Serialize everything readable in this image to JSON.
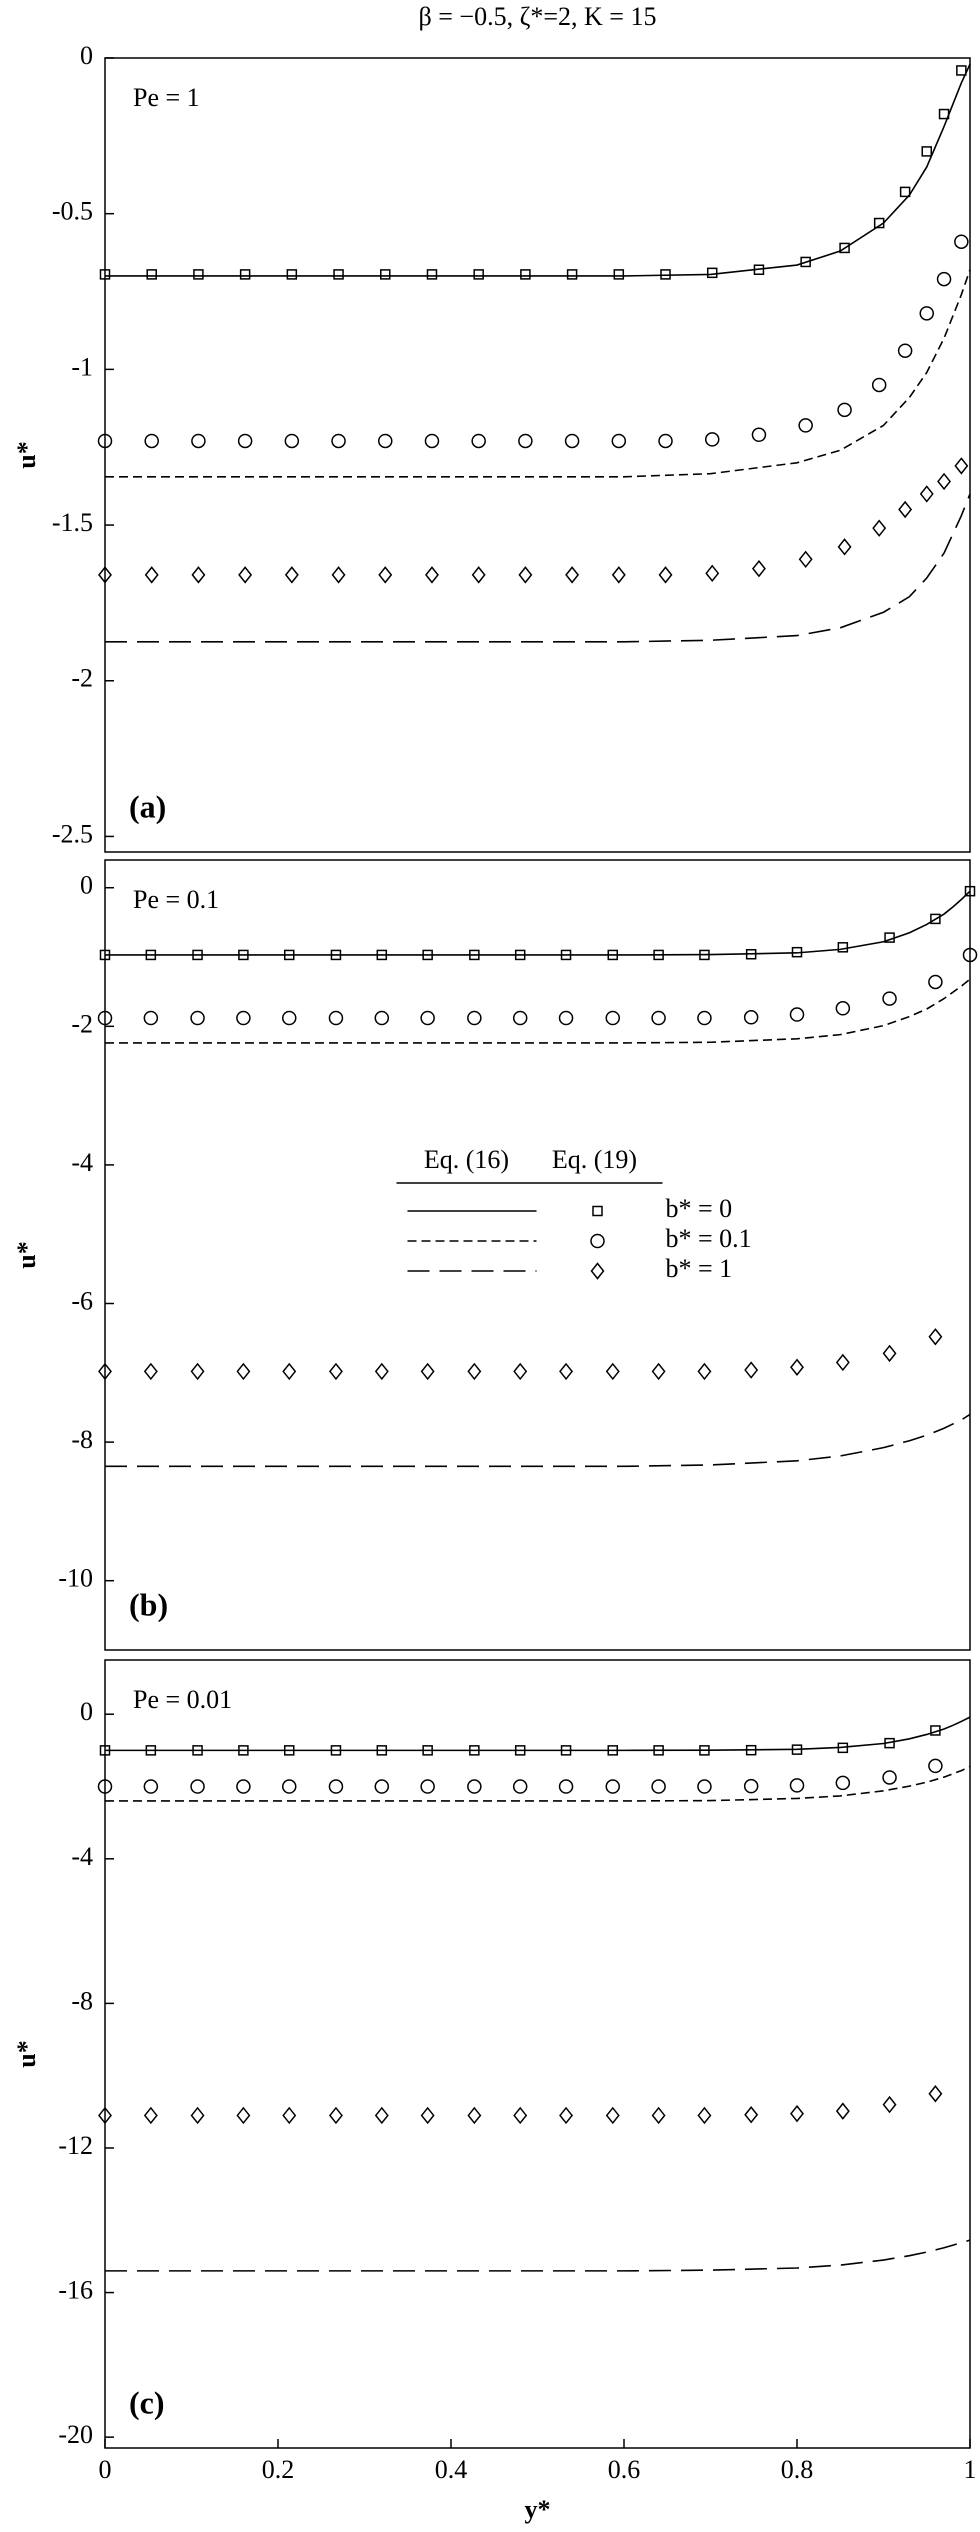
{
  "chart_data": [
    {
      "type": "line",
      "title": "β = −0.5, ζ*=2, K = 15",
      "annotation": "Pe = 1",
      "panel_label": "(a)",
      "ylabel": "u*",
      "xlim": [
        0,
        1
      ],
      "ylim": [
        -2.55,
        0
      ],
      "yticks": [
        0,
        -0.5,
        -1,
        -1.5,
        -2,
        -2.5
      ],
      "x": [
        0,
        0.1,
        0.2,
        0.3,
        0.4,
        0.5,
        0.6,
        0.7,
        0.8,
        0.85,
        0.9,
        0.93,
        0.95,
        0.97,
        0.98,
        0.99,
        1
      ],
      "marker_x": [
        0,
        0.054,
        0.108,
        0.162,
        0.216,
        0.27,
        0.324,
        0.378,
        0.432,
        0.486,
        0.54,
        0.594,
        0.648,
        0.702,
        0.756,
        0.81,
        0.855,
        0.895,
        0.925,
        0.95,
        0.97,
        0.99
      ],
      "series": [
        {
          "color": "#000",
          "dash": "solid",
          "marker": "square",
          "values": [
            -0.7,
            -0.7,
            -0.7,
            -0.7,
            -0.7,
            -0.7,
            -0.7,
            -0.695,
            -0.665,
            -0.62,
            -0.53,
            -0.44,
            -0.35,
            -0.22,
            -0.15,
            -0.08,
            -0.02
          ],
          "marker_values": [
            -0.695,
            -0.695,
            -0.695,
            -0.695,
            -0.695,
            -0.695,
            -0.695,
            -0.695,
            -0.695,
            -0.695,
            -0.695,
            -0.695,
            -0.695,
            -0.69,
            -0.68,
            -0.655,
            -0.61,
            -0.53,
            -0.43,
            -0.3,
            -0.18,
            -0.04
          ]
        },
        {
          "color": "#000",
          "dash": "short",
          "marker": "circle",
          "values": [
            -1.345,
            -1.345,
            -1.345,
            -1.345,
            -1.345,
            -1.345,
            -1.345,
            -1.335,
            -1.3,
            -1.26,
            -1.18,
            -1.09,
            -1.01,
            -0.9,
            -0.83,
            -0.76,
            -0.68
          ],
          "marker_values": [
            -1.23,
            -1.23,
            -1.23,
            -1.23,
            -1.23,
            -1.23,
            -1.23,
            -1.23,
            -1.23,
            -1.23,
            -1.23,
            -1.23,
            -1.23,
            -1.225,
            -1.21,
            -1.18,
            -1.13,
            -1.05,
            -0.94,
            -0.82,
            -0.71,
            -0.59
          ]
        },
        {
          "color": "#000",
          "dash": "long",
          "marker": "diamond",
          "values": [
            -1.875,
            -1.875,
            -1.875,
            -1.875,
            -1.875,
            -1.875,
            -1.875,
            -1.87,
            -1.855,
            -1.83,
            -1.78,
            -1.73,
            -1.67,
            -1.59,
            -1.53,
            -1.47,
            -1.4
          ],
          "marker_values": [
            -1.66,
            -1.66,
            -1.66,
            -1.66,
            -1.66,
            -1.66,
            -1.66,
            -1.66,
            -1.66,
            -1.66,
            -1.66,
            -1.66,
            -1.66,
            -1.655,
            -1.64,
            -1.61,
            -1.57,
            -1.51,
            -1.45,
            -1.4,
            -1.36,
            -1.31
          ]
        }
      ]
    },
    {
      "type": "line",
      "annotation": "Pe = 0.1",
      "panel_label": "(b)",
      "ylabel": "u*",
      "xlim": [
        0,
        1
      ],
      "ylim": [
        -11,
        0.4
      ],
      "yticks": [
        0,
        -2,
        -4,
        -6,
        -8,
        -10
      ],
      "legend": {
        "headers": [
          "Eq. (16)",
          "Eq. (19)"
        ],
        "position": "center"
      },
      "x": [
        0,
        0.1,
        0.2,
        0.3,
        0.4,
        0.5,
        0.6,
        0.7,
        0.8,
        0.85,
        0.9,
        0.93,
        0.95,
        0.97,
        0.98,
        0.99,
        1
      ],
      "marker_x": [
        0,
        0.053,
        0.107,
        0.16,
        0.213,
        0.267,
        0.32,
        0.373,
        0.427,
        0.48,
        0.533,
        0.587,
        0.64,
        0.693,
        0.747,
        0.8,
        0.853,
        0.907,
        0.96,
        1
      ],
      "series": [
        {
          "name": "b* = 0",
          "color": "#000",
          "dash": "solid",
          "marker": "square",
          "values": [
            -0.97,
            -0.97,
            -0.97,
            -0.97,
            -0.97,
            -0.97,
            -0.97,
            -0.965,
            -0.94,
            -0.89,
            -0.78,
            -0.65,
            -0.53,
            -0.38,
            -0.28,
            -0.17,
            -0.05
          ],
          "marker_values": [
            -0.97,
            -0.97,
            -0.97,
            -0.97,
            -0.97,
            -0.97,
            -0.97,
            -0.97,
            -0.97,
            -0.97,
            -0.97,
            -0.97,
            -0.97,
            -0.97,
            -0.96,
            -0.93,
            -0.86,
            -0.72,
            -0.45,
            -0.05
          ]
        },
        {
          "name": "b* = 0.1",
          "color": "#000",
          "dash": "short",
          "marker": "circle",
          "values": [
            -2.24,
            -2.24,
            -2.24,
            -2.24,
            -2.24,
            -2.24,
            -2.24,
            -2.23,
            -2.18,
            -2.12,
            -1.99,
            -1.86,
            -1.75,
            -1.6,
            -1.51,
            -1.42,
            -1.32
          ],
          "marker_values": [
            -1.88,
            -1.88,
            -1.88,
            -1.88,
            -1.88,
            -1.88,
            -1.88,
            -1.88,
            -1.88,
            -1.88,
            -1.88,
            -1.88,
            -1.88,
            -1.88,
            -1.87,
            -1.83,
            -1.74,
            -1.6,
            -1.36,
            -0.97
          ]
        },
        {
          "name": "b* = 1",
          "color": "#000",
          "dash": "long",
          "marker": "diamond",
          "values": [
            -8.35,
            -8.35,
            -8.35,
            -8.35,
            -8.35,
            -8.35,
            -8.35,
            -8.33,
            -8.27,
            -8.2,
            -8.08,
            -7.98,
            -7.9,
            -7.8,
            -7.74,
            -7.68,
            -7.6
          ],
          "marker_values": [
            -6.98,
            -6.98,
            -6.98,
            -6.98,
            -6.98,
            -6.98,
            -6.98,
            -6.98,
            -6.98,
            -6.98,
            -6.98,
            -6.98,
            -6.98,
            -6.98,
            -6.96,
            -6.92,
            -6.85,
            -6.72,
            -6.48,
            null
          ]
        }
      ]
    },
    {
      "type": "line",
      "annotation": "Pe = 0.01",
      "panel_label": "(c)",
      "ylabel": "u*",
      "xlabel": "y*",
      "xlim": [
        0,
        1
      ],
      "ylim": [
        -20.3,
        1.5
      ],
      "yticks": [
        0,
        -4,
        -8,
        -12,
        -16,
        -20
      ],
      "xticks": [
        0,
        0.2,
        0.4,
        0.6,
        0.8,
        1
      ],
      "x": [
        0,
        0.1,
        0.2,
        0.3,
        0.4,
        0.5,
        0.6,
        0.7,
        0.8,
        0.85,
        0.9,
        0.93,
        0.95,
        0.97,
        0.98,
        0.99,
        1
      ],
      "marker_x": [
        0,
        0.053,
        0.107,
        0.16,
        0.213,
        0.267,
        0.32,
        0.373,
        0.427,
        0.48,
        0.533,
        0.587,
        0.64,
        0.693,
        0.747,
        0.8,
        0.853,
        0.907,
        0.96
      ],
      "series": [
        {
          "color": "#000",
          "dash": "solid",
          "marker": "square",
          "values": [
            -1,
            -1,
            -1,
            -1,
            -1,
            -1,
            -1,
            -0.995,
            -0.97,
            -0.92,
            -0.81,
            -0.68,
            -0.56,
            -0.41,
            -0.31,
            -0.2,
            -0.08
          ],
          "marker_values": [
            -1,
            -1,
            -1,
            -1,
            -1,
            -1,
            -1,
            -1,
            -1,
            -1,
            -1,
            -1,
            -1,
            -1,
            -0.995,
            -0.98,
            -0.93,
            -0.8,
            -0.45
          ]
        },
        {
          "color": "#000",
          "dash": "short",
          "marker": "circle",
          "values": [
            -2.4,
            -2.4,
            -2.4,
            -2.4,
            -2.4,
            -2.4,
            -2.4,
            -2.39,
            -2.33,
            -2.26,
            -2.12,
            -1.99,
            -1.88,
            -1.74,
            -1.65,
            -1.56,
            -1.45
          ],
          "marker_values": [
            -2,
            -2,
            -2,
            -2,
            -2,
            -2,
            -2,
            -2,
            -2,
            -2,
            -2,
            -2,
            -2,
            -2,
            -1.99,
            -1.97,
            -1.9,
            -1.75,
            -1.43
          ]
        },
        {
          "color": "#000",
          "dash": "long",
          "marker": "diamond",
          "values": [
            -15.4,
            -15.4,
            -15.4,
            -15.4,
            -15.4,
            -15.4,
            -15.4,
            -15.38,
            -15.32,
            -15.24,
            -15.1,
            -14.98,
            -14.88,
            -14.76,
            -14.69,
            -14.62,
            -14.55
          ],
          "marker_values": [
            -11.1,
            -11.1,
            -11.1,
            -11.1,
            -11.1,
            -11.1,
            -11.1,
            -11.1,
            -11.1,
            -11.1,
            -11.1,
            -11.1,
            -11.1,
            -11.1,
            -11.08,
            -11.05,
            -10.98,
            -10.8,
            -10.5
          ]
        }
      ]
    }
  ]
}
